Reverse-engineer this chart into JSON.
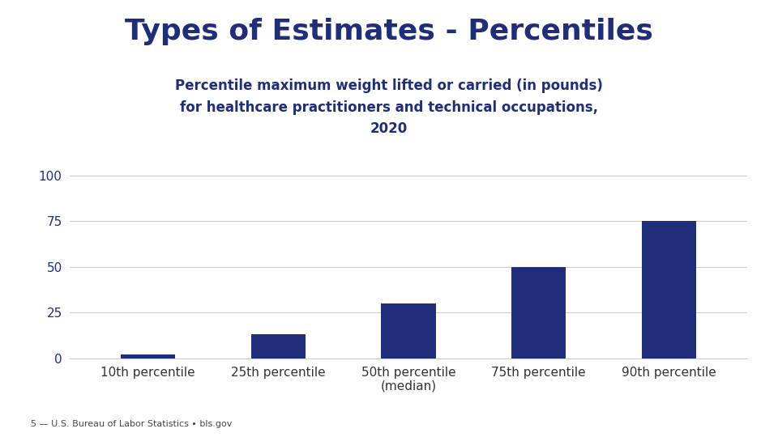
{
  "title": "Types of Estimates - Percentiles",
  "subtitle_line1": "Percentile maximum weight lifted or carried (in pounds)",
  "subtitle_line2": "for healthcare practitioners and technical occupations,",
  "subtitle_line3": "2020",
  "categories": [
    "10th percentile",
    "25th percentile",
    "50th percentile\n(median)",
    "75th percentile",
    "90th percentile"
  ],
  "values": [
    2,
    13,
    30,
    50,
    75
  ],
  "bar_color": "#1F2D7B",
  "ylim": [
    0,
    105
  ],
  "yticks": [
    0,
    25,
    50,
    75,
    100
  ],
  "background_color": "#ffffff",
  "title_color": "#1F2D7B",
  "subtitle_color": "#1F2D7B",
  "title_fontsize": 26,
  "subtitle_fontsize": 12,
  "tick_fontsize": 11,
  "footer_simple": "5 — U.S. Bureau of Labor Statistics • bls.gov",
  "grid_color": "#cccccc",
  "ytick_color": "#1F2D7B",
  "xtick_color": "#333333"
}
